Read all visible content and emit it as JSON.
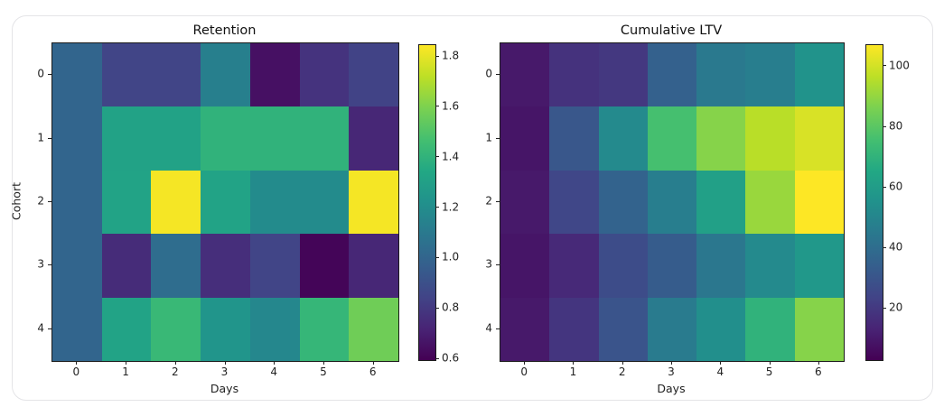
{
  "colors": {
    "background": "#ffffff",
    "card_border": "#e4e4e7",
    "axes_edge": "#1a1a1a",
    "tick_text": "#222222",
    "viridis": [
      "#440154",
      "#482475",
      "#414487",
      "#355f8d",
      "#2a788e",
      "#21918c",
      "#22a884",
      "#44bf70",
      "#7ad151",
      "#bddf26",
      "#fde725"
    ]
  },
  "chart_data": [
    {
      "type": "heatmap",
      "title": "Retention",
      "xlabel": "Days",
      "ylabel": "Cohort",
      "colormap": "viridis",
      "x_tick_labels": [
        "0",
        "1",
        "2",
        "3",
        "4",
        "5",
        "6"
      ],
      "y_tick_labels": [
        "0",
        "1",
        "2",
        "3",
        "4"
      ],
      "vmin": 0.595,
      "vmax": 1.845,
      "colorbar_tick_values": [
        1.8,
        1.6,
        1.4,
        1.2,
        1.0,
        0.8,
        0.6
      ],
      "colorbar_tick_labels": [
        "1.8",
        "1.6",
        "1.4",
        "1.2",
        "1.0",
        "0.8",
        "0.6"
      ],
      "values": [
        [
          1.0,
          0.85,
          0.85,
          1.13,
          0.65,
          0.78,
          0.84
        ],
        [
          1.0,
          1.31,
          1.31,
          1.4,
          1.4,
          1.4,
          0.73
        ],
        [
          1.0,
          1.32,
          1.83,
          1.32,
          1.19,
          1.19,
          1.83
        ],
        [
          1.0,
          0.75,
          1.04,
          0.76,
          0.85,
          0.61,
          0.73
        ],
        [
          1.0,
          1.32,
          1.43,
          1.24,
          1.17,
          1.42,
          1.57
        ]
      ]
    },
    {
      "type": "heatmap",
      "title": "Cumulative LTV",
      "xlabel": "Days",
      "colormap": "viridis",
      "x_tick_labels": [
        "0",
        "1",
        "2",
        "3",
        "4",
        "5",
        "6"
      ],
      "y_tick_labels": [
        "0",
        "1",
        "2",
        "3",
        "4"
      ],
      "vmin": 3,
      "vmax": 107,
      "colorbar_tick_values": [
        100,
        80,
        60,
        40,
        20
      ],
      "colorbar_tick_labels": [
        "100",
        "80",
        "60",
        "40",
        "20"
      ],
      "values": [
        [
          10,
          18,
          20,
          35,
          45,
          47,
          56
        ],
        [
          9,
          31,
          52,
          76,
          88,
          96,
          101
        ],
        [
          10,
          25,
          36,
          47,
          62,
          91,
          107
        ],
        [
          9,
          15,
          27,
          33,
          44,
          52,
          58
        ],
        [
          10,
          19,
          30,
          46,
          54,
          70,
          88
        ]
      ]
    }
  ]
}
